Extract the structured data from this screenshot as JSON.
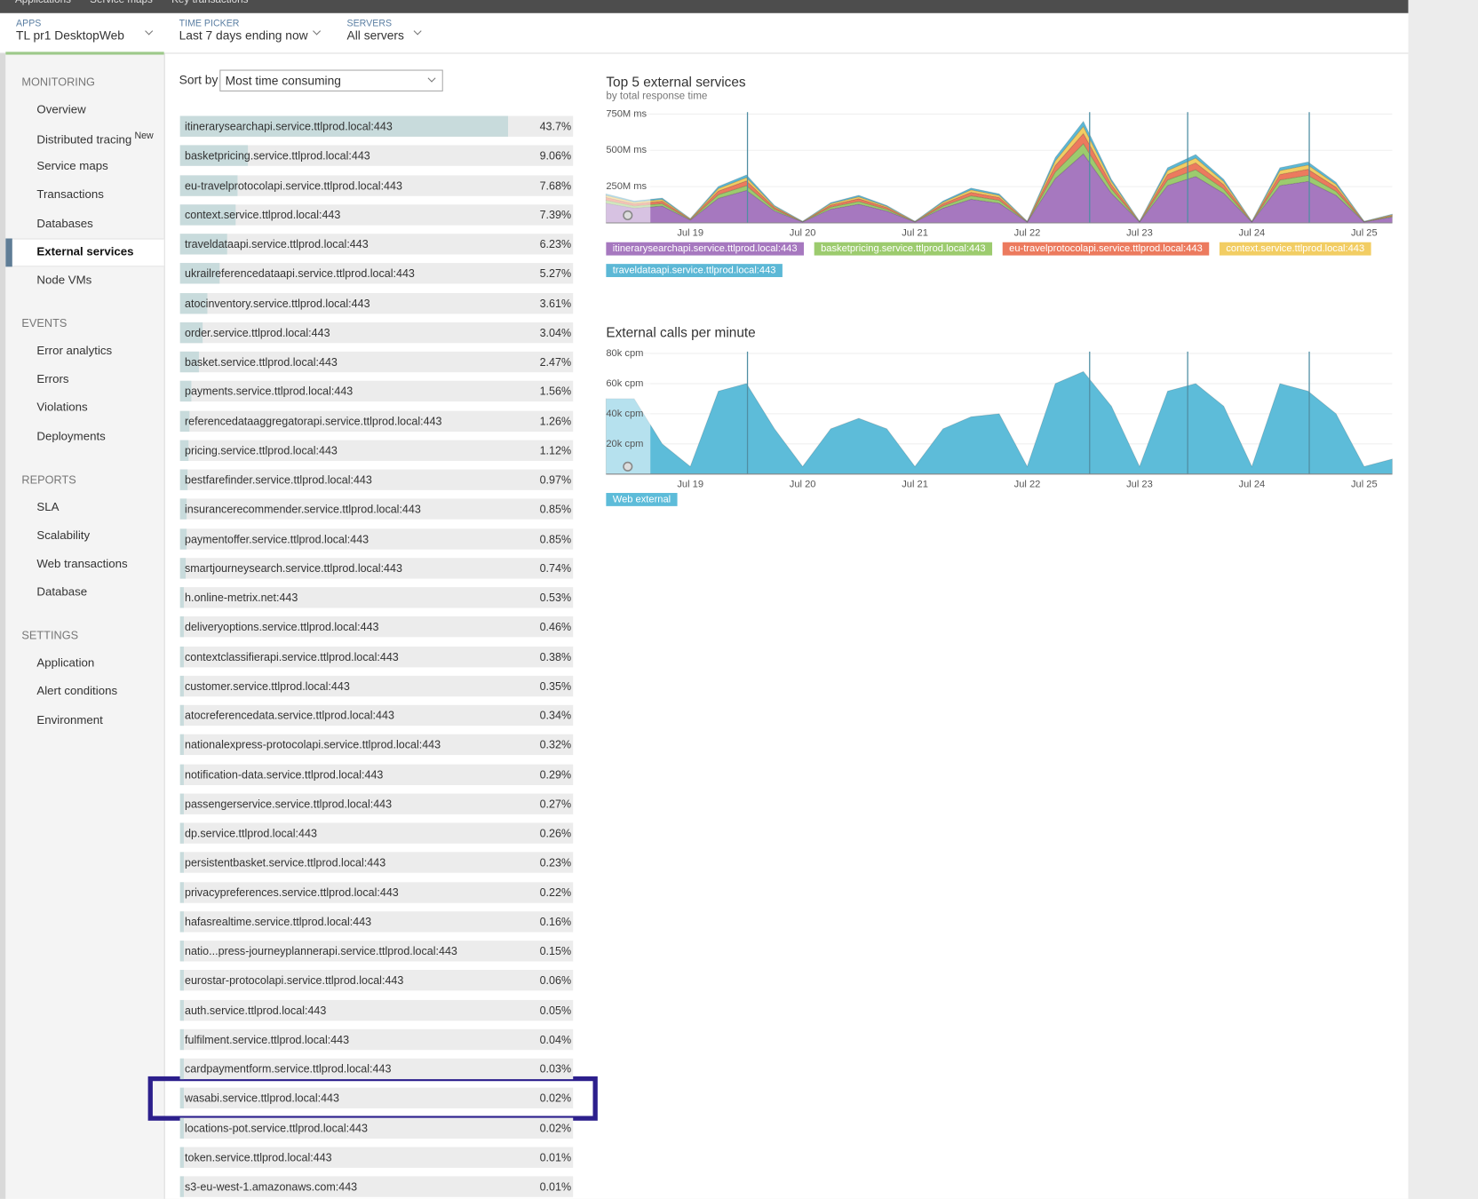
{
  "nav": {
    "items": [
      "Applications",
      "Service maps",
      "Key transactions"
    ]
  },
  "pickers": [
    {
      "label": "APPS",
      "value": "TL pr1 DesktopWeb"
    },
    {
      "label": "TIME PICKER",
      "value": "Last 7 days ending now"
    },
    {
      "label": "SERVERS",
      "value": "All servers"
    }
  ],
  "sidebar": [
    {
      "heading": "MONITORING",
      "items": [
        {
          "label": "Overview"
        },
        {
          "label": "Distributed tracing",
          "badge": "New"
        },
        {
          "label": "Service maps"
        },
        {
          "label": "Transactions"
        },
        {
          "label": "Databases"
        },
        {
          "label": "External services",
          "active": true
        },
        {
          "label": "Node VMs"
        }
      ]
    },
    {
      "heading": "EVENTS",
      "items": [
        {
          "label": "Error analytics"
        },
        {
          "label": "Errors"
        },
        {
          "label": "Violations"
        },
        {
          "label": "Deployments"
        }
      ]
    },
    {
      "heading": "REPORTS",
      "items": [
        {
          "label": "SLA"
        },
        {
          "label": "Scalability"
        },
        {
          "label": "Web transactions"
        },
        {
          "label": "Database"
        }
      ]
    },
    {
      "heading": "SETTINGS",
      "items": [
        {
          "label": "Application"
        },
        {
          "label": "Alert conditions"
        },
        {
          "label": "Environment"
        }
      ]
    }
  ],
  "sort": {
    "label": "Sort by",
    "value": "Most time consuming"
  },
  "services": {
    "names": [
      "itinerarysearchapi.service.ttlprod.local:443",
      "basketpricing.service.ttlprod.local:443",
      "eu-travelprotocolapi.service.ttlprod.local:443",
      "context.service.ttlprod.local:443",
      "traveldataapi.service.ttlprod.local:443",
      "ukrailreferencedataapi.service.ttlprod.local:443",
      "atocinventory.service.ttlprod.local:443",
      "order.service.ttlprod.local:443",
      "basket.service.ttlprod.local:443",
      "payments.service.ttlprod.local:443",
      "referencedataaggregatorapi.service.ttlprod.local:443",
      "pricing.service.ttlprod.local:443",
      "bestfarefinder.service.ttlprod.local:443",
      "insurancerecommender.service.ttlprod.local:443",
      "paymentoffer.service.ttlprod.local:443",
      "smartjourneysearch.service.ttlprod.local:443",
      "h.online-metrix.net:443",
      "deliveryoptions.service.ttlprod.local:443",
      "contextclassifierapi.service.ttlprod.local:443",
      "customer.service.ttlprod.local:443",
      "atocreferencedata.service.ttlprod.local:443",
      "nationalexpress-protocolapi.service.ttlprod.local:443",
      "notification-data.service.ttlprod.local:443",
      "passengerservice.service.ttlprod.local:443",
      "dp.service.ttlprod.local:443",
      "persistentbasket.service.ttlprod.local:443",
      "privacypreferences.service.ttlprod.local:443",
      "hafasrealtime.service.ttlprod.local:443",
      "natio...press-journeyplannerapi.service.ttlprod.local:443",
      "eurostar-protocolapi.service.ttlprod.local:443",
      "auth.service.ttlprod.local:443",
      "fulfilment.service.ttlprod.local:443",
      "cardpaymentform.service.ttlprod.local:443",
      "wasabi.service.ttlprod.local:443",
      "locations-pot.service.ttlprod.local:443",
      "token.service.ttlprod.local:443",
      "s3-eu-west-1.amazonaws.com:443"
    ],
    "values": [
      43.7,
      9.06,
      7.68,
      7.39,
      6.23,
      5.27,
      3.61,
      3.04,
      2.47,
      1.56,
      1.26,
      1.12,
      0.97,
      0.85,
      0.85,
      0.74,
      0.53,
      0.46,
      0.38,
      0.35,
      0.34,
      0.32,
      0.29,
      0.27,
      0.26,
      0.23,
      0.22,
      0.16,
      0.15,
      0.06,
      0.05,
      0.04,
      0.03,
      0.02,
      0.02,
      0.01,
      0.01
    ],
    "value_labels": [
      "43.7%",
      "9.06%",
      "7.68%",
      "7.39%",
      "6.23%",
      "5.27%",
      "3.61%",
      "3.04%",
      "2.47%",
      "1.56%",
      "1.26%",
      "1.12%",
      "0.97%",
      "0.85%",
      "0.85%",
      "0.74%",
      "0.53%",
      "0.46%",
      "0.38%",
      "0.35%",
      "0.34%",
      "0.32%",
      "0.29%",
      "0.27%",
      "0.26%",
      "0.23%",
      "0.22%",
      "0.16%",
      "0.15%",
      "0.06%",
      "0.05%",
      "0.04%",
      "0.03%",
      "0.02%",
      "0.02%",
      "0.01%",
      "0.01%"
    ]
  },
  "chart_data": [
    {
      "type": "area",
      "stacked": true,
      "title": "Top 5 external services",
      "subtitle": "by total response time",
      "categories": [
        null,
        null,
        null,
        "Jul 19",
        null,
        null,
        null,
        "Jul 20",
        null,
        null,
        null,
        "Jul 21",
        null,
        null,
        null,
        "Jul 22",
        null,
        null,
        null,
        "Jul 23",
        null,
        null,
        null,
        "Jul 24",
        null,
        null,
        null,
        "Jul 25",
        null
      ],
      "ylim": [
        0,
        750000000.0
      ],
      "yticks": [
        {
          "value": 250000000.0,
          "label": "250M ms"
        },
        {
          "value": 500000000.0,
          "label": "500M ms"
        },
        {
          "value": 750000000.0,
          "label": "750M ms"
        }
      ],
      "grid": true,
      "series": [
        {
          "name": "itinerarysearchapi.service.ttlprod.local:443",
          "color": "#a678bf",
          "values": [
            136000000.0,
            102000000.0,
            116000000.0,
            20000000.0,
            170000000.0,
            224000000.0,
            82000000.0,
            7000000.0,
            95000000.0,
            129000000.0,
            82000000.0,
            7000000.0,
            102000000.0,
            163000000.0,
            136000000.0,
            7000000.0,
            306000000.0,
            476000000.0,
            204000000.0,
            7000000.0,
            258000000.0,
            320000000.0,
            204000000.0,
            7000000.0,
            258000000.0,
            286000000.0,
            190000000.0,
            7000000.0,
            41000000.0
          ]
        },
        {
          "name": "basketpricing.service.ttlprod.local:443",
          "color": "#9ccb6e",
          "values": [
            20000000.0,
            15000000.0,
            17000000.0,
            3000000.0,
            25000000.0,
            33000000.0,
            12000000.0,
            1000000.0,
            14000000.0,
            19000000.0,
            12000000.0,
            1000000.0,
            15000000.0,
            24000000.0,
            20000000.0,
            1000000.0,
            45000000.0,
            70000000.0,
            30000000.0,
            1000000.0,
            38000000.0,
            47000000.0,
            30000000.0,
            1000000.0,
            38000000.0,
            42000000.0,
            28000000.0,
            1000000.0,
            6000000.0
          ]
        },
        {
          "name": "eu-travelprotocolapi.service.ttlprod.local:443",
          "color": "#ec7a5e",
          "values": [
            20000000.0,
            15000000.0,
            17000000.0,
            3000000.0,
            25000000.0,
            33000000.0,
            12000000.0,
            1000000.0,
            14000000.0,
            19000000.0,
            12000000.0,
            1000000.0,
            15000000.0,
            24000000.0,
            20000000.0,
            1000000.0,
            45000000.0,
            70000000.0,
            30000000.0,
            1000000.0,
            38000000.0,
            47000000.0,
            30000000.0,
            1000000.0,
            38000000.0,
            42000000.0,
            28000000.0,
            1000000.0,
            6000000.0
          ]
        },
        {
          "name": "context.service.ttlprod.local:443",
          "color": "#f2cd63",
          "values": [
            14000000.0,
            11000000.0,
            12000000.0,
            2000000.0,
            18000000.0,
            23000000.0,
            8000000.0,
            1000000.0,
            10000000.0,
            13000000.0,
            8000000.0,
            1000000.0,
            11000000.0,
            17000000.0,
            14000000.0,
            1000000.0,
            32000000.0,
            49000000.0,
            21000000.0,
            1000000.0,
            27000000.0,
            33000000.0,
            21000000.0,
            1000000.0,
            27000000.0,
            29000000.0,
            20000000.0,
            1000000.0,
            4000000.0
          ]
        },
        {
          "name": "traveldataapi.service.ttlprod.local:443",
          "color": "#5cb8d6",
          "values": [
            10000000.0,
            8000000.0,
            9000000.0,
            2000000.0,
            13000000.0,
            17000000.0,
            6000000.0,
            1000000.0,
            7000000.0,
            10000000.0,
            6000000.0,
            1000000.0,
            8000000.0,
            12000000.0,
            10000000.0,
            1000000.0,
            23000000.0,
            35000000.0,
            15000000.0,
            1000000.0,
            19000000.0,
            24000000.0,
            15000000.0,
            1000000.0,
            19000000.0,
            21000000.0,
            14000000.0,
            1000000.0,
            3000000.0
          ]
        }
      ]
    },
    {
      "type": "area",
      "stacked": false,
      "title": "External calls per minute",
      "categories": [
        null,
        null,
        null,
        "Jul 19",
        null,
        null,
        null,
        "Jul 20",
        null,
        null,
        null,
        "Jul 21",
        null,
        null,
        null,
        "Jul 22",
        null,
        null,
        null,
        "Jul 23",
        null,
        null,
        null,
        "Jul 24",
        null,
        null,
        null,
        "Jul 25",
        null
      ],
      "ylim": [
        0,
        80000.0
      ],
      "yticks": [
        {
          "value": 20000.0,
          "label": "20k cpm"
        },
        {
          "value": 40000.0,
          "label": "40k cpm"
        },
        {
          "value": 60000.0,
          "label": "60k cpm"
        },
        {
          "value": 80000.0,
          "label": "80k cpm"
        }
      ],
      "grid": true,
      "series": [
        {
          "name": "Web external",
          "color": "#5dbcd9",
          "values": [
            50000.0,
            50000.0,
            20000.0,
            5000.0,
            55000.0,
            60000.0,
            30000.0,
            5000.0,
            30000.0,
            37000.0,
            30000.0,
            5000.0,
            30000.0,
            38000.0,
            40000.0,
            5000.0,
            60000.0,
            68000.0,
            45000.0,
            5000.0,
            55000.0,
            60000.0,
            45000.0,
            5000.0,
            60000.0,
            55000.0,
            40000.0,
            5000.0,
            10000.0
          ]
        }
      ]
    }
  ]
}
